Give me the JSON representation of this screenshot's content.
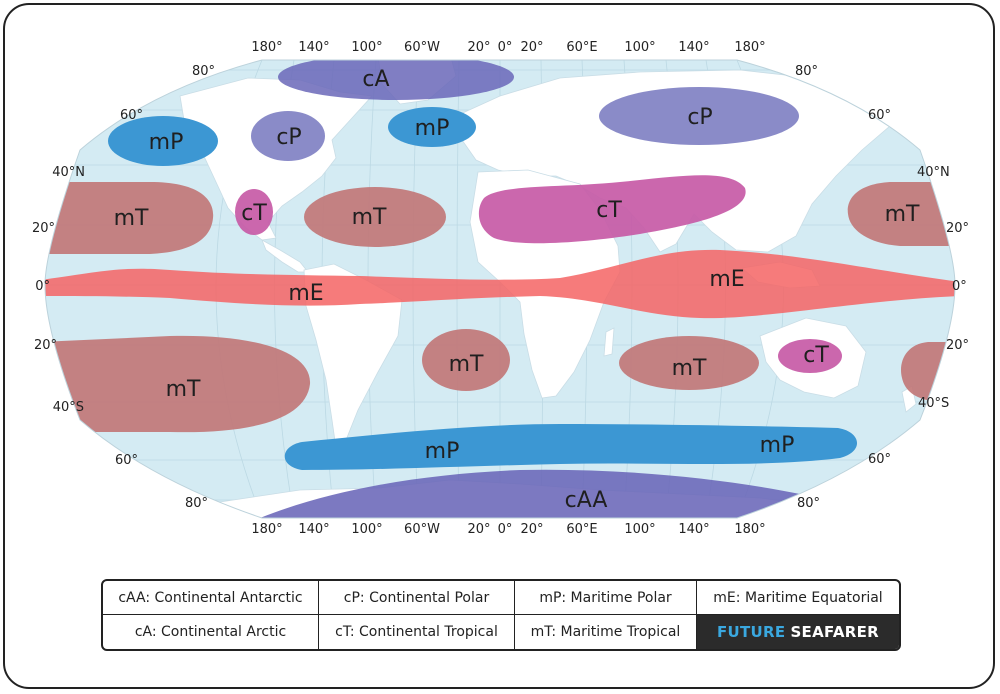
{
  "map": {
    "lat_labels_left": [
      "80°",
      "60°",
      "40°N",
      "20°",
      "0°",
      "20°",
      "40°S",
      "60°",
      "80°"
    ],
    "lat_labels_right": [
      "80°",
      "60°",
      "40°N",
      "20°",
      "0°",
      "20°",
      "40°S",
      "60°",
      "80°"
    ],
    "lon_labels": [
      "180°",
      "140°",
      "100°",
      "60°W",
      "20°",
      "0°",
      "20°",
      "60°E",
      "100°",
      "140°",
      "180°"
    ],
    "air_masses": {
      "cA": "cA",
      "cP_na": "cP",
      "cP_asia": "cP",
      "mP_pacific": "mP",
      "mP_atlantic": "mP",
      "cT_mexico": "cT",
      "cT_sahara": "cT",
      "cT_australia": "cT",
      "mT_n_pacific": "mT",
      "mT_n_atlantic": "mT",
      "mT_nw_pacific": "mT",
      "mE_west": "mE",
      "mE_east": "mE",
      "mT_s_pacific": "mT",
      "mT_s_atlantic": "mT",
      "mT_indian": "mT",
      "mT_sw_pacific": "",
      "mP_south_west": "mP",
      "mP_south_east": "mP",
      "cAA": "cAA"
    },
    "colors": {
      "ocean": "#d4ebf3",
      "land": "#ffffff",
      "continental_polar": "#7d7ec2",
      "maritime_polar": "#3c97d3",
      "continental_tropical": "#c75aa6",
      "maritime_tropical": "#c17575",
      "maritime_equatorial": "#f56464"
    }
  },
  "legend": {
    "caa": "cAA: Continental Antarctic",
    "cp": "cP: Continental Polar",
    "mp": "mP: Maritime Polar",
    "me": "mE: Maritime Equatorial",
    "ca": "cA: Continental Arctic",
    "ct": "cT: Continental Tropical",
    "mt": "mT: Maritime Tropical",
    "brand_part1": "FUTURE",
    "brand_part2": "SEAFARER"
  }
}
